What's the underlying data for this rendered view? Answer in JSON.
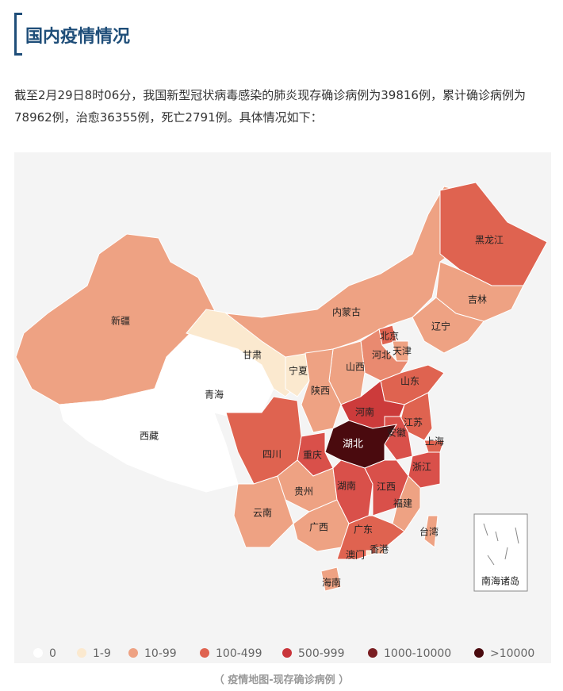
{
  "header": {
    "title": "国内疫情情况"
  },
  "paragraph": "截至2月29日8时06分，我国新型冠状病毒感染的肺炎现存确诊病例为39816例，累计确诊病例为78962例，治愈36355例，死亡2791例。具体情况如下：",
  "map": {
    "provinces": [
      {
        "name": "新疆",
        "color": "#eea283"
      },
      {
        "name": "西藏",
        "color": "#ffffff"
      },
      {
        "name": "青海",
        "color": "#ffffff"
      },
      {
        "name": "甘肃",
        "color": "#fbe9cf"
      },
      {
        "name": "宁夏",
        "color": "#fbe9cf"
      },
      {
        "name": "内蒙古",
        "color": "#eea283"
      },
      {
        "name": "黑龙江",
        "color": "#df6350"
      },
      {
        "name": "吉林",
        "color": "#eea283"
      },
      {
        "name": "辽宁",
        "color": "#eea283"
      },
      {
        "name": "北京",
        "color": "#df6350"
      },
      {
        "name": "天津",
        "color": "#eea283"
      },
      {
        "name": "河北",
        "color": "#e98a70"
      },
      {
        "name": "山西",
        "color": "#eea283"
      },
      {
        "name": "陕西",
        "color": "#eea283"
      },
      {
        "name": "山东",
        "color": "#df6350"
      },
      {
        "name": "河南",
        "color": "#cc3b3b"
      },
      {
        "name": "江苏",
        "color": "#df6350"
      },
      {
        "name": "安徽",
        "color": "#d9504a"
      },
      {
        "name": "上海",
        "color": "#df6350"
      },
      {
        "name": "浙江",
        "color": "#d9504a"
      },
      {
        "name": "湖北",
        "color": "#4a0a0e"
      },
      {
        "name": "重庆",
        "color": "#d9504a"
      },
      {
        "name": "四川",
        "color": "#df6350"
      },
      {
        "name": "贵州",
        "color": "#eea283"
      },
      {
        "name": "云南",
        "color": "#eea283"
      },
      {
        "name": "湖南",
        "color": "#d9504a"
      },
      {
        "name": "江西",
        "color": "#d9504a"
      },
      {
        "name": "福建",
        "color": "#eea283"
      },
      {
        "name": "广西",
        "color": "#eea283"
      },
      {
        "name": "广东",
        "color": "#df6350"
      },
      {
        "name": "海南",
        "color": "#eea283"
      },
      {
        "name": "台湾",
        "color": "#eea283"
      },
      {
        "name": "香港",
        "color": "#eea283"
      },
      {
        "name": "澳门",
        "color": "#fbe9cf"
      }
    ],
    "inset_label": "南海诸岛",
    "legend": [
      {
        "label": "0",
        "color": "#ffffff"
      },
      {
        "label": "1-9",
        "color": "#fbe9cf"
      },
      {
        "label": "10-99",
        "color": "#eea283"
      },
      {
        "label": "100-499",
        "color": "#df6350"
      },
      {
        "label": "500-999",
        "color": "#c9353a"
      },
      {
        "label": "1000-10000",
        "color": "#7a1e22"
      },
      {
        "label": ">10000",
        "color": "#4a0a0e"
      }
    ]
  },
  "caption": "（ 疫情地图-现存确诊病例 ）"
}
